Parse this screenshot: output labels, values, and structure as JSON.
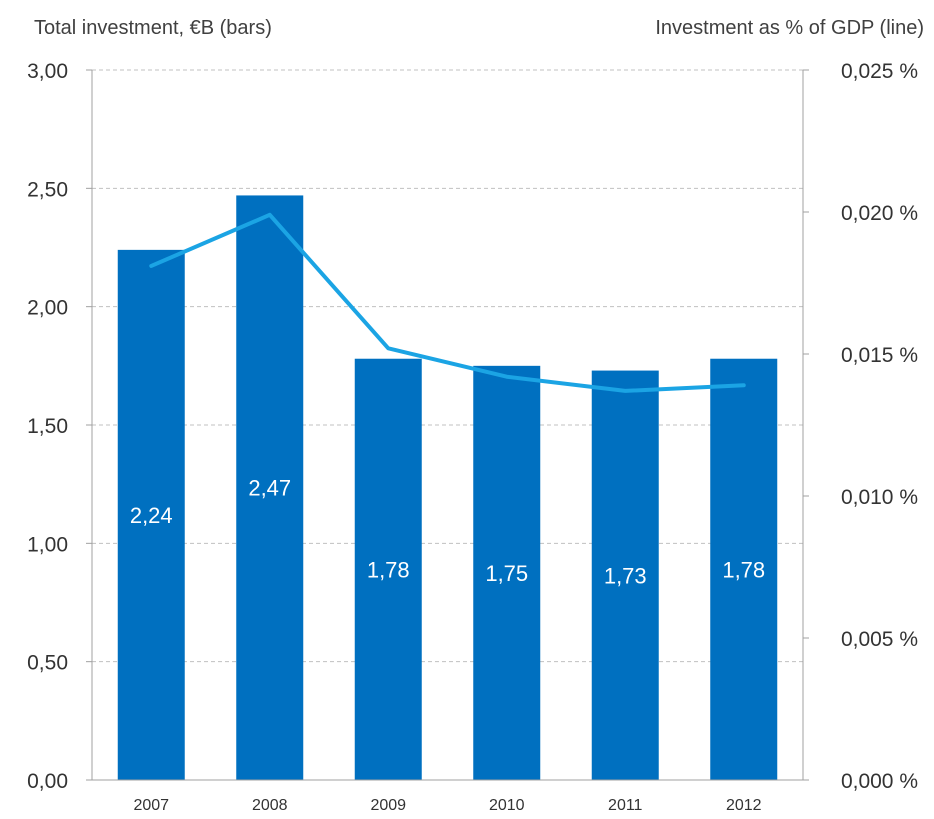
{
  "chart_data": {
    "type": "bar",
    "left_axis_title": "Total investment, €B (bars)",
    "right_axis_title": "Investment as % of GDP (line)",
    "categories": [
      "2007",
      "2008",
      "2009",
      "2010",
      "2011",
      "2012"
    ],
    "bars": {
      "values": [
        2.24,
        2.47,
        1.78,
        1.75,
        1.73,
        1.78
      ],
      "labels": [
        "2,24",
        "2,47",
        "1,78",
        "1,75",
        "1,73",
        "1,78"
      ],
      "color": "#0070c0"
    },
    "line": {
      "values": [
        0.0181,
        0.0199,
        0.0152,
        0.0142,
        0.0137,
        0.0139
      ],
      "color": "#1ba4e4"
    },
    "left_axis": {
      "range": [
        0,
        3
      ],
      "ticks": [
        0,
        0.5,
        1,
        1.5,
        2,
        2.5,
        3
      ],
      "tick_labels": [
        "0,00",
        "0,50",
        "1,00",
        "1,50",
        "2,00",
        "2,50",
        "3,00"
      ]
    },
    "right_axis": {
      "range": [
        0,
        0.025
      ],
      "ticks": [
        0,
        0.005,
        0.01,
        0.015,
        0.02,
        0.025
      ],
      "tick_labels": [
        "0,000 %",
        "0,005 %",
        "0,010 %",
        "0,015 %",
        "0,020 %",
        "0,025 %"
      ]
    },
    "grid": true,
    "grid_color": "#c0c0c0",
    "axis_color": "#a0a0a0"
  }
}
